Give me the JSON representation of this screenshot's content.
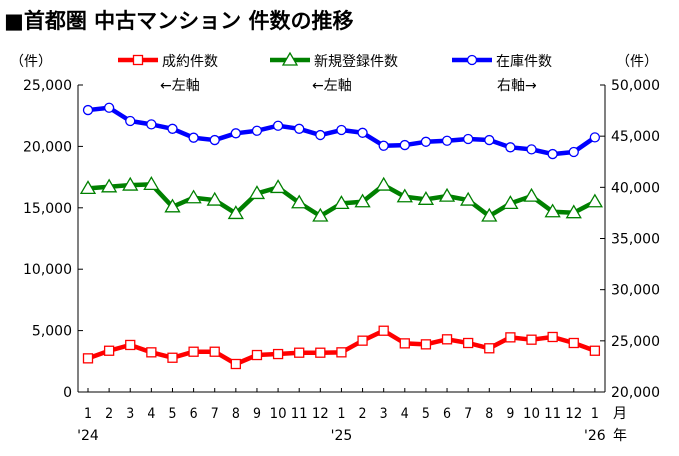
{
  "chart_data": {
    "type": "line",
    "title": "■首都圏 中古マンション 件数の推移",
    "left_unit": "（件）",
    "right_unit": "（件）",
    "left_ylim": [
      0,
      25000
    ],
    "right_ylim": [
      20000,
      50000
    ],
    "left_ticks": [
      "0",
      "5,000",
      "10,000",
      "15,000",
      "20,000",
      "25,000"
    ],
    "left_tick_values": [
      0,
      5000,
      10000,
      15000,
      20000,
      25000
    ],
    "right_ticks": [
      "20,000",
      "25,000",
      "30,000",
      "35,000",
      "40,000",
      "45,000",
      "50,000"
    ],
    "right_tick_values": [
      20000,
      25000,
      30000,
      35000,
      40000,
      45000,
      50000
    ],
    "month_labels": [
      "1",
      "2",
      "3",
      "4",
      "5",
      "6",
      "7",
      "8",
      "9",
      "10",
      "11",
      "12",
      "1",
      "2",
      "3",
      "4",
      "5",
      "6",
      "7",
      "8",
      "9",
      "10",
      "11",
      "12",
      "1"
    ],
    "year_labels": [
      {
        "index": 0,
        "text": "'24"
      },
      {
        "index": 12,
        "text": "'25"
      },
      {
        "index": 24,
        "text": "'26"
      }
    ],
    "month_unit": "月",
    "year_unit": "年",
    "series": [
      {
        "name": "成約件数",
        "axis_note": "←左軸",
        "axis": "left",
        "color": "#ff0000",
        "marker": "square",
        "values": [
          2740,
          3360,
          3830,
          3230,
          2790,
          3280,
          3280,
          2280,
          3010,
          3090,
          3200,
          3200,
          3230,
          4180,
          4990,
          3960,
          3880,
          4290,
          3990,
          3560,
          4450,
          4260,
          4480,
          3990,
          3360
        ]
      },
      {
        "name": "新規登録件数",
        "axis_note": "←左軸",
        "axis": "left",
        "color": "#008000",
        "marker": "triangle",
        "values": [
          16580,
          16710,
          16850,
          16910,
          15080,
          15820,
          15630,
          14540,
          16170,
          16660,
          15410,
          14330,
          15360,
          15490,
          16850,
          15900,
          15690,
          15950,
          15630,
          14330,
          15360,
          15950,
          14680,
          14600,
          15490
        ]
      },
      {
        "name": "在庫件数",
        "axis_note": "右軸→",
        "axis": "right",
        "color": "#0000ff",
        "marker": "circle",
        "values": [
          47550,
          47780,
          46480,
          46150,
          45720,
          44850,
          44620,
          45280,
          45530,
          46020,
          45720,
          45110,
          45600,
          45330,
          44060,
          44130,
          44450,
          44550,
          44720,
          44620,
          43910,
          43710,
          43250,
          43450,
          44880
        ]
      }
    ]
  }
}
